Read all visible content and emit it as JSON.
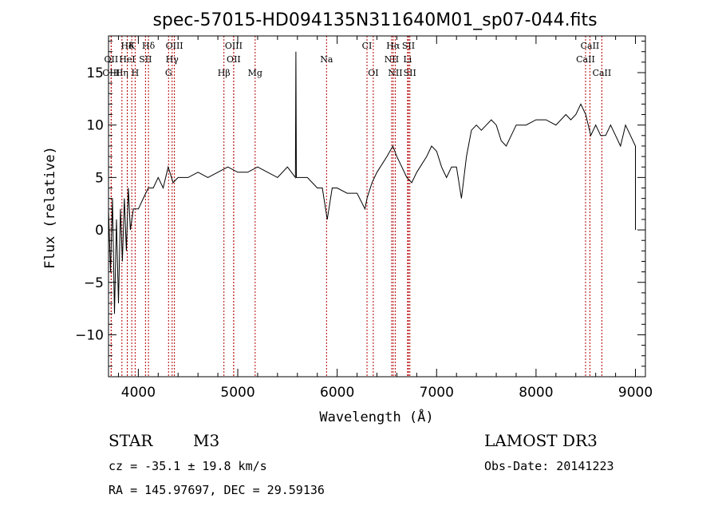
{
  "chart_data": {
    "type": "line",
    "title": "spec-57015-HD094135N311640M01_sp07-044.fits",
    "xlabel": "Wavelength (Å)",
    "ylabel": "Flux (relative)",
    "xlim": [
      3700,
      9100
    ],
    "ylim": [
      -14,
      18.5
    ],
    "x_ticks": [
      4000,
      5000,
      6000,
      7000,
      8000,
      9000
    ],
    "y_ticks": [
      -10,
      -5,
      0,
      5,
      10,
      15
    ],
    "x_tick_labels": [
      "4000",
      "5000",
      "6000",
      "7000",
      "8000",
      "9000"
    ],
    "y_tick_labels": [
      "−10",
      "−5",
      "0",
      "5",
      "10",
      "15"
    ],
    "series": [
      {
        "name": "flux",
        "color": "#000000",
        "points": [
          [
            3700,
            2
          ],
          [
            3720,
            -4
          ],
          [
            3740,
            3
          ],
          [
            3760,
            -8
          ],
          [
            3780,
            1
          ],
          [
            3800,
            -7
          ],
          [
            3820,
            2
          ],
          [
            3840,
            -3
          ],
          [
            3860,
            3
          ],
          [
            3880,
            -2
          ],
          [
            3900,
            4
          ],
          [
            3920,
            0
          ],
          [
            3950,
            2
          ],
          [
            4000,
            2
          ],
          [
            4050,
            3
          ],
          [
            4100,
            4
          ],
          [
            4150,
            4
          ],
          [
            4200,
            5
          ],
          [
            4250,
            4
          ],
          [
            4300,
            6
          ],
          [
            4350,
            4.5
          ],
          [
            4400,
            5
          ],
          [
            4500,
            5
          ],
          [
            4600,
            5.5
          ],
          [
            4700,
            5
          ],
          [
            4800,
            5.5
          ],
          [
            4900,
            6
          ],
          [
            5000,
            5.5
          ],
          [
            5100,
            5.5
          ],
          [
            5200,
            6
          ],
          [
            5300,
            5.5
          ],
          [
            5400,
            5
          ],
          [
            5500,
            6
          ],
          [
            5580,
            5
          ],
          [
            5585,
            17
          ],
          [
            5590,
            5
          ],
          [
            5700,
            5
          ],
          [
            5800,
            4
          ],
          [
            5850,
            4
          ],
          [
            5900,
            1
          ],
          [
            5950,
            4
          ],
          [
            6000,
            4
          ],
          [
            6100,
            3.5
          ],
          [
            6200,
            3.5
          ],
          [
            6280,
            2
          ],
          [
            6300,
            3
          ],
          [
            6350,
            4.5
          ],
          [
            6400,
            5.5
          ],
          [
            6500,
            7
          ],
          [
            6560,
            8
          ],
          [
            6600,
            7
          ],
          [
            6650,
            6
          ],
          [
            6700,
            5
          ],
          [
            6750,
            4.5
          ],
          [
            6800,
            5.5
          ],
          [
            6900,
            7
          ],
          [
            6950,
            8
          ],
          [
            7000,
            7.5
          ],
          [
            7050,
            6
          ],
          [
            7100,
            5
          ],
          [
            7150,
            6
          ],
          [
            7200,
            6
          ],
          [
            7250,
            3
          ],
          [
            7300,
            7
          ],
          [
            7350,
            9.5
          ],
          [
            7400,
            10
          ],
          [
            7450,
            9.5
          ],
          [
            7500,
            10
          ],
          [
            7550,
            10.5
          ],
          [
            7600,
            10
          ],
          [
            7650,
            8.5
          ],
          [
            7700,
            8
          ],
          [
            7750,
            9
          ],
          [
            7800,
            10
          ],
          [
            7900,
            10
          ],
          [
            8000,
            10.5
          ],
          [
            8100,
            10.5
          ],
          [
            8200,
            10
          ],
          [
            8300,
            11
          ],
          [
            8350,
            10.5
          ],
          [
            8400,
            11
          ],
          [
            8450,
            12
          ],
          [
            8500,
            11
          ],
          [
            8550,
            9
          ],
          [
            8600,
            10
          ],
          [
            8650,
            9
          ],
          [
            8700,
            9
          ],
          [
            8750,
            10
          ],
          [
            8800,
            9
          ],
          [
            8850,
            8
          ],
          [
            8900,
            10
          ],
          [
            8950,
            9
          ],
          [
            9000,
            8
          ],
          [
            9000,
            0
          ]
        ]
      }
    ],
    "emission_lines": [
      {
        "label": "Hδ",
        "x": 3889,
        "row": 0
      },
      {
        "label": "K",
        "x": 3934,
        "row": 0
      },
      {
        "label": "Hδ",
        "x": 4102,
        "row": 0
      },
      {
        "label": "OIII",
        "x": 4363,
        "row": 0
      },
      {
        "label": "OIII",
        "x": 4959,
        "row": 0
      },
      {
        "label": "CI",
        "x": 6300,
        "row": 0
      },
      {
        "label": "Hα",
        "x": 6563,
        "row": 0
      },
      {
        "label": "SII",
        "x": 6717,
        "row": 0
      },
      {
        "label": "CaII",
        "x": 8542,
        "row": 0
      },
      {
        "label": "OII",
        "x": 3727,
        "row": 1
      },
      {
        "label": "HeI",
        "x": 3889,
        "row": 1
      },
      {
        "label": "SII",
        "x": 4072,
        "row": 1
      },
      {
        "label": "Hγ",
        "x": 4340,
        "row": 1
      },
      {
        "label": "OII",
        "x": 4959,
        "row": 1
      },
      {
        "label": "Na",
        "x": 5893,
        "row": 1
      },
      {
        "label": "NII",
        "x": 6548,
        "row": 1
      },
      {
        "label": "Li",
        "x": 6708,
        "row": 1
      },
      {
        "label": "CaII",
        "x": 8498,
        "row": 1
      },
      {
        "label": "OIII",
        "x": 3727,
        "row": 2
      },
      {
        "label": "Hη",
        "x": 3835,
        "row": 2
      },
      {
        "label": "H",
        "x": 3968,
        "row": 2
      },
      {
        "label": "G",
        "x": 4304,
        "row": 2
      },
      {
        "label": "Hβ",
        "x": 4861,
        "row": 2
      },
      {
        "label": "Mg",
        "x": 5175,
        "row": 2
      },
      {
        "label": "OI",
        "x": 6363,
        "row": 2
      },
      {
        "label": "NII",
        "x": 6584,
        "row": 2
      },
      {
        "label": "SII",
        "x": 6731,
        "row": 2
      },
      {
        "label": "CaII",
        "x": 8662,
        "row": 2
      }
    ],
    "emission_line_color": "#b30000"
  },
  "info": {
    "object_class": "STAR",
    "subclass": "M3",
    "survey": "LAMOST DR3",
    "cz": "cz = -35.1 ± 19.8 km/s",
    "obs_date": "Obs-Date: 20141223",
    "coords": "RA = 145.97697, DEC =  29.59136"
  }
}
